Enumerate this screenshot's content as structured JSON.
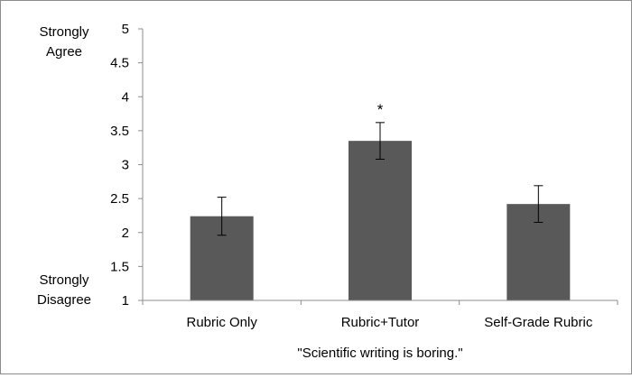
{
  "chart_data": {
    "type": "bar",
    "categories": [
      "Rubric Only",
      "Rubric+Tutor",
      "Self-Grade Rubric"
    ],
    "values": [
      2.24,
      3.35,
      2.42
    ],
    "error": [
      0.28,
      0.27,
      0.27
    ],
    "significance": [
      "",
      "*",
      ""
    ],
    "xlabel": "\"Scientific writing is boring.\"",
    "ylabel": "",
    "ylim": [
      1,
      5
    ],
    "yticks": [
      "1",
      "1.5",
      "2",
      "2.5",
      "3",
      "3.5",
      "4",
      "4.5",
      "5"
    ],
    "y_anchor_top": [
      "Strongly",
      "Agree"
    ],
    "y_anchor_bottom": [
      "Strongly",
      "Disagree"
    ],
    "grid": false,
    "legend": "none",
    "bar_color": "#595959"
  }
}
